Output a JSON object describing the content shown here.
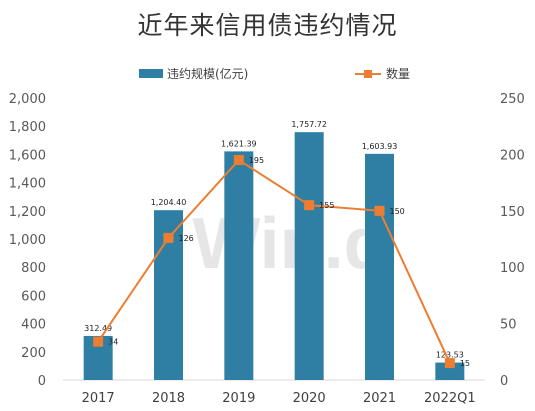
{
  "title": "近年来信用债违约情况",
  "watermark": "Win.d",
  "chart_data": {
    "type": "bar",
    "categories": [
      "2017",
      "2018",
      "2019",
      "2020",
      "2021",
      "2022Q1"
    ],
    "series": [
      {
        "name": "违约规模(亿元)",
        "type": "bar",
        "axis": "left",
        "color": "#2e7fa3",
        "values": [
          312.49,
          1204.4,
          1621.39,
          1757.72,
          1603.93,
          123.53
        ],
        "labels": [
          "312.49",
          "1,204.40",
          "1,621.39",
          "1,757.72",
          "1,603.93",
          "123.53"
        ]
      },
      {
        "name": "数量",
        "type": "line",
        "axis": "right",
        "color": "#ed7d31",
        "values": [
          34,
          126,
          195,
          155,
          150,
          15
        ],
        "labels": [
          "34",
          "126",
          "195",
          "155",
          "150",
          "15"
        ]
      }
    ],
    "y_left": {
      "ylim": [
        0,
        2000
      ],
      "ticks": [
        "0",
        "200",
        "400",
        "600",
        "800",
        "1,000",
        "1,200",
        "1,400",
        "1,600",
        "1,800",
        "2,000"
      ]
    },
    "y_right": {
      "ylim": [
        0,
        250
      ],
      "ticks": [
        "0",
        "50",
        "100",
        "150",
        "200",
        "250"
      ]
    },
    "legend": "top",
    "grid": false
  }
}
